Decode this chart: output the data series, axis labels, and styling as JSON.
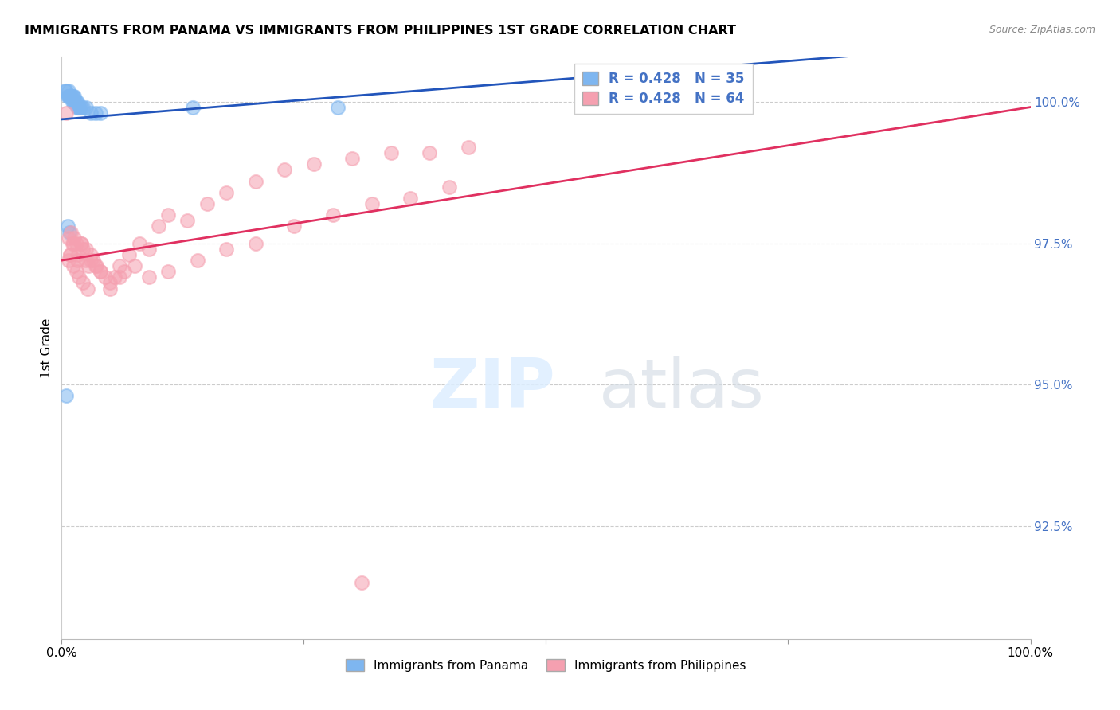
{
  "title": "IMMIGRANTS FROM PANAMA VS IMMIGRANTS FROM PHILIPPINES 1ST GRADE CORRELATION CHART",
  "source": "Source: ZipAtlas.com",
  "ylabel": "1st Grade",
  "legend_label_1": "Immigrants from Panama",
  "legend_label_2": "Immigrants from Philippines",
  "r_panama": 0.428,
  "n_panama": 35,
  "r_philippines": 0.428,
  "n_philippines": 64,
  "color_panama": "#7eb6f0",
  "color_philippines": "#f5a0b0",
  "line_color_panama": "#2255bb",
  "line_color_philippines": "#e03060",
  "xmin": 0.0,
  "xmax": 1.0,
  "ymin": 0.905,
  "ymax": 1.008,
  "yticks": [
    0.925,
    0.95,
    0.975,
    1.0
  ],
  "ytick_labels": [
    "92.5%",
    "95.0%",
    "97.5%",
    "100.0%"
  ],
  "xticks": [
    0.0,
    0.25,
    0.5,
    0.75,
    1.0
  ],
  "xtick_labels": [
    "0.0%",
    "",
    "",
    "",
    "100.0%"
  ],
  "panama_x": [
    0.004,
    0.005,
    0.006,
    0.007,
    0.007,
    0.008,
    0.008,
    0.009,
    0.009,
    0.01,
    0.01,
    0.011,
    0.011,
    0.012,
    0.012,
    0.013,
    0.013,
    0.014,
    0.015,
    0.016,
    0.016,
    0.017,
    0.018,
    0.019,
    0.02,
    0.022,
    0.025,
    0.03,
    0.035,
    0.04,
    0.008,
    0.135,
    0.285,
    0.005,
    0.006
  ],
  "panama_y": [
    1.002,
    1.002,
    1.001,
    1.001,
    1.002,
    1.001,
    1.001,
    1.001,
    1.001,
    1.001,
    1.001,
    1.001,
    1.0,
    1.001,
    1.0,
    1.0,
    1.001,
    1.0,
    1.0,
    1.0,
    0.999,
    0.999,
    0.999,
    0.999,
    0.999,
    0.999,
    0.999,
    0.998,
    0.998,
    0.998,
    0.977,
    0.999,
    0.999,
    0.948,
    0.978
  ],
  "philippines_x": [
    0.005,
    0.007,
    0.009,
    0.011,
    0.013,
    0.015,
    0.017,
    0.02,
    0.022,
    0.025,
    0.028,
    0.03,
    0.033,
    0.036,
    0.04,
    0.045,
    0.05,
    0.055,
    0.06,
    0.065,
    0.07,
    0.08,
    0.09,
    0.1,
    0.11,
    0.13,
    0.15,
    0.17,
    0.2,
    0.23,
    0.26,
    0.3,
    0.34,
    0.38,
    0.42,
    0.01,
    0.012,
    0.016,
    0.02,
    0.025,
    0.03,
    0.035,
    0.04,
    0.05,
    0.06,
    0.075,
    0.09,
    0.11,
    0.14,
    0.17,
    0.2,
    0.24,
    0.28,
    0.32,
    0.36,
    0.4,
    0.007,
    0.009,
    0.012,
    0.015,
    0.018,
    0.022,
    0.027,
    0.31
  ],
  "philippines_y": [
    0.998,
    0.972,
    0.973,
    0.975,
    0.976,
    0.975,
    0.973,
    0.975,
    0.974,
    0.972,
    0.971,
    0.973,
    0.972,
    0.971,
    0.97,
    0.969,
    0.967,
    0.969,
    0.971,
    0.97,
    0.973,
    0.975,
    0.974,
    0.978,
    0.98,
    0.979,
    0.982,
    0.984,
    0.986,
    0.988,
    0.989,
    0.99,
    0.991,
    0.991,
    0.992,
    0.977,
    0.975,
    0.972,
    0.975,
    0.974,
    0.972,
    0.971,
    0.97,
    0.968,
    0.969,
    0.971,
    0.969,
    0.97,
    0.972,
    0.974,
    0.975,
    0.978,
    0.98,
    0.982,
    0.983,
    0.985,
    0.976,
    0.973,
    0.971,
    0.97,
    0.969,
    0.968,
    0.967,
    0.915
  ],
  "trend_line_xmin": 0.0,
  "trend_line_xmax": 1.0
}
